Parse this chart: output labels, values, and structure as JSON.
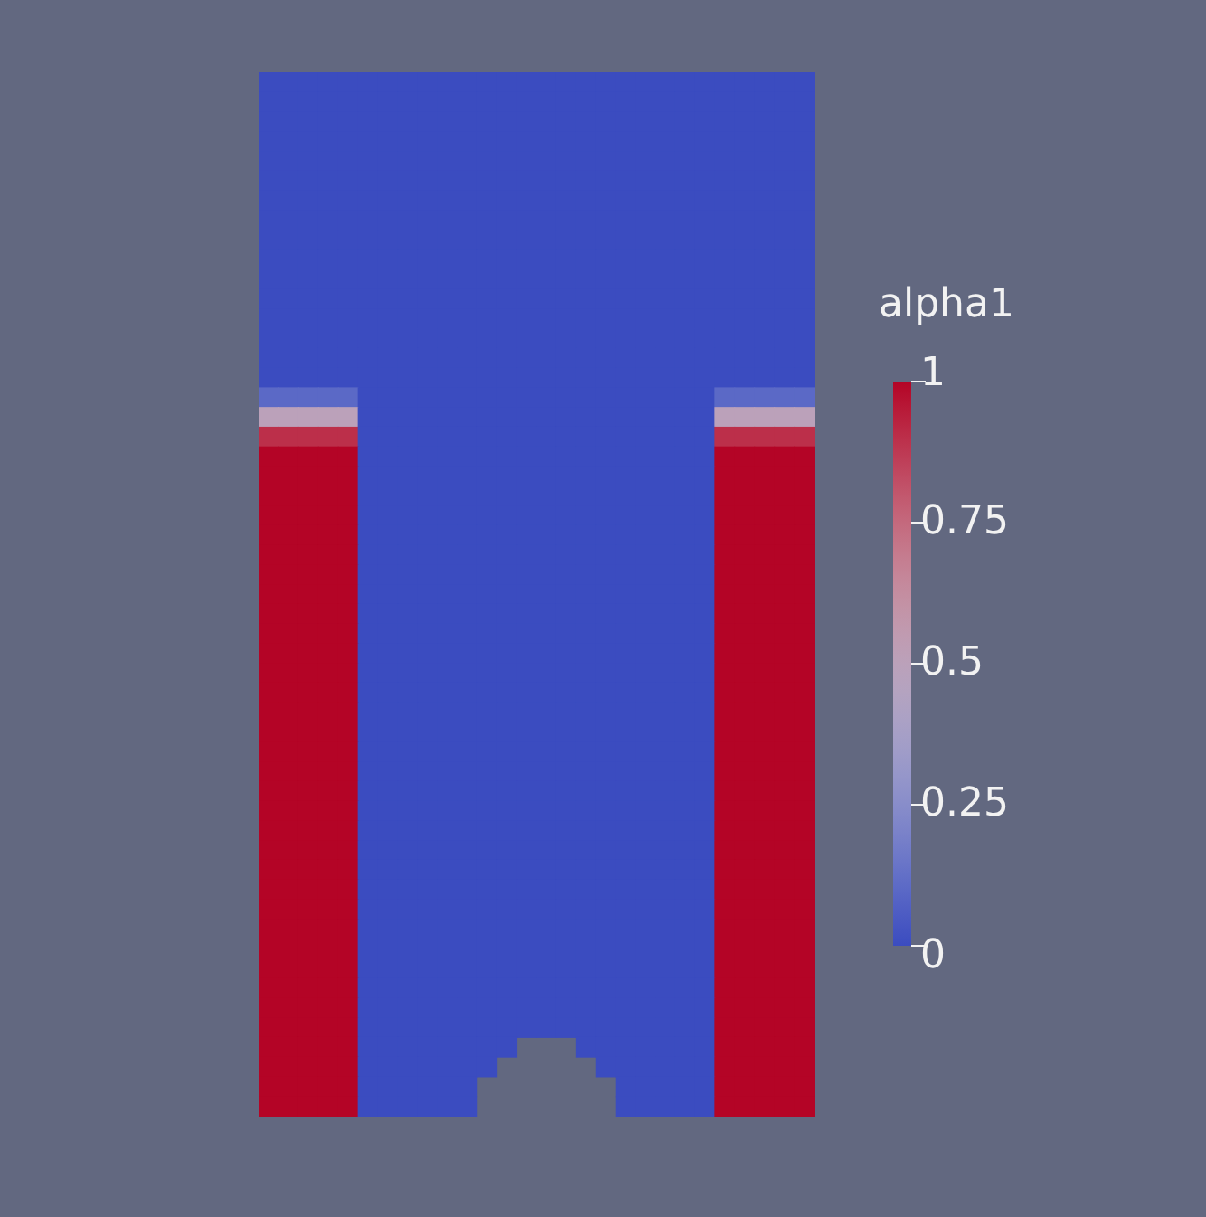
{
  "chart_data": {
    "type": "heatmap",
    "clabel": "alpha1",
    "clim": [
      0,
      1
    ],
    "cticks": [
      0,
      0.25,
      0.5,
      0.75,
      1
    ],
    "categories": [
      null,
      null,
      null,
      null,
      null,
      null,
      null,
      null,
      null,
      null,
      null,
      null,
      null,
      null,
      null,
      null,
      null,
      null,
      null,
      null,
      null,
      null,
      null,
      null,
      null,
      null,
      null,
      null
    ],
    "y_categories": [
      null,
      null,
      null,
      null,
      null,
      null,
      null,
      null,
      null,
      null,
      null,
      null,
      null,
      null,
      null,
      null,
      null,
      null,
      null,
      null,
      null,
      null,
      null,
      null,
      null,
      null,
      null,
      null,
      null,
      null,
      null,
      null,
      null,
      null,
      null,
      null,
      null,
      null,
      null,
      null,
      null,
      null,
      null,
      null,
      null,
      null,
      null,
      null,
      null,
      null,
      null,
      null,
      null
    ],
    "cells": [
      [
        0,
        0,
        0,
        0,
        0,
        0,
        0,
        0,
        0,
        0,
        0,
        0,
        0,
        0,
        0,
        0,
        0,
        0,
        0,
        0,
        0,
        0,
        0,
        0,
        0,
        0,
        0,
        0
      ],
      [
        0,
        0,
        0,
        0,
        0,
        0,
        0,
        0,
        0,
        0,
        0,
        0,
        0,
        0,
        0,
        0,
        0,
        0,
        0,
        0,
        0,
        0,
        0,
        0,
        0,
        0,
        0,
        0
      ],
      [
        0,
        0,
        0,
        0,
        0,
        0,
        0,
        0,
        0,
        0,
        0,
        0,
        0,
        0,
        0,
        0,
        0,
        0,
        0,
        0,
        0,
        0,
        0,
        0,
        0,
        0,
        0,
        0
      ],
      [
        0,
        0,
        0,
        0,
        0,
        0,
        0,
        0,
        0,
        0,
        0,
        0,
        0,
        0,
        0,
        0,
        0,
        0,
        0,
        0,
        0,
        0,
        0,
        0,
        0,
        0,
        0,
        0
      ],
      [
        0,
        0,
        0,
        0,
        0,
        0,
        0,
        0,
        0,
        0,
        0,
        0,
        0,
        0,
        0,
        0,
        0,
        0,
        0,
        0,
        0,
        0,
        0,
        0,
        0,
        0,
        0,
        0
      ],
      [
        0,
        0,
        0,
        0,
        0,
        0,
        0,
        0,
        0,
        0,
        0,
        0,
        0,
        0,
        0,
        0,
        0,
        0,
        0,
        0,
        0,
        0,
        0,
        0,
        0,
        0,
        0,
        0
      ],
      [
        0,
        0,
        0,
        0,
        0,
        0,
        0,
        0,
        0,
        0,
        0,
        0,
        0,
        0,
        0,
        0,
        0,
        0,
        0,
        0,
        0,
        0,
        0,
        0,
        0,
        0,
        0,
        0
      ],
      [
        0,
        0,
        0,
        0,
        0,
        0,
        0,
        0,
        0,
        0,
        0,
        0,
        0,
        0,
        0,
        0,
        0,
        0,
        0,
        0,
        0,
        0,
        0,
        0,
        0,
        0,
        0,
        0
      ],
      [
        0,
        0,
        0,
        0,
        0,
        0,
        0,
        0,
        0,
        0,
        0,
        0,
        0,
        0,
        0,
        0,
        0,
        0,
        0,
        0,
        0,
        0,
        0,
        0,
        0,
        0,
        0,
        0
      ],
      [
        0,
        0,
        0,
        0,
        0,
        0,
        0,
        0,
        0,
        0,
        0,
        0,
        0,
        0,
        0,
        0,
        0,
        0,
        0,
        0,
        0,
        0,
        0,
        0,
        0,
        0,
        0,
        0
      ],
      [
        0,
        0,
        0,
        0,
        0,
        0,
        0,
        0,
        0,
        0,
        0,
        0,
        0,
        0,
        0,
        0,
        0,
        0,
        0,
        0,
        0,
        0,
        0,
        0,
        0,
        0,
        0,
        0
      ],
      [
        0,
        0,
        0,
        0,
        0,
        0,
        0,
        0,
        0,
        0,
        0,
        0,
        0,
        0,
        0,
        0,
        0,
        0,
        0,
        0,
        0,
        0,
        0,
        0,
        0,
        0,
        0,
        0
      ],
      [
        0,
        0,
        0,
        0,
        0,
        0,
        0,
        0,
        0,
        0,
        0,
        0,
        0,
        0,
        0,
        0,
        0,
        0,
        0,
        0,
        0,
        0,
        0,
        0,
        0,
        0,
        0,
        0
      ],
      [
        0,
        0,
        0,
        0,
        0,
        0,
        0,
        0,
        0,
        0,
        0,
        0,
        0,
        0,
        0,
        0,
        0,
        0,
        0,
        0,
        0,
        0,
        0,
        0,
        0,
        0,
        0,
        0
      ],
      [
        0,
        0,
        0,
        0,
        0,
        0,
        0,
        0,
        0,
        0,
        0,
        0,
        0,
        0,
        0,
        0,
        0,
        0,
        0,
        0,
        0,
        0,
        0,
        0,
        0,
        0,
        0,
        0
      ],
      [
        0,
        0,
        0,
        0,
        0,
        0,
        0,
        0,
        0,
        0,
        0,
        0,
        0,
        0,
        0,
        0,
        0,
        0,
        0,
        0,
        0,
        0,
        0,
        0,
        0,
        0,
        0,
        0
      ],
      [
        0.1,
        0.1,
        0.1,
        0.1,
        0.1,
        0,
        0,
        0,
        0,
        0,
        0,
        0,
        0,
        0,
        0,
        0,
        0,
        0,
        0,
        0,
        0,
        0,
        0,
        0.1,
        0.1,
        0.1,
        0.1,
        0.1
      ],
      [
        0.5,
        0.5,
        0.5,
        0.5,
        0.5,
        0,
        0,
        0,
        0,
        0,
        0,
        0,
        0,
        0,
        0,
        0,
        0,
        0,
        0,
        0,
        0,
        0,
        0,
        0.5,
        0.5,
        0.5,
        0.5,
        0.5
      ],
      [
        0.9,
        0.9,
        0.9,
        0.9,
        0.9,
        0,
        0,
        0,
        0,
        0,
        0,
        0,
        0,
        0,
        0,
        0,
        0,
        0,
        0,
        0,
        0,
        0,
        0,
        0.9,
        0.9,
        0.9,
        0.9,
        0.9
      ],
      [
        1,
        1,
        1,
        1,
        1,
        0,
        0,
        0,
        0,
        0,
        0,
        0,
        0,
        0,
        0,
        0,
        0,
        0,
        0,
        0,
        0,
        0,
        0,
        1,
        1,
        1,
        1,
        1
      ],
      [
        1,
        1,
        1,
        1,
        1,
        0,
        0,
        0,
        0,
        0,
        0,
        0,
        0,
        0,
        0,
        0,
        0,
        0,
        0,
        0,
        0,
        0,
        0,
        1,
        1,
        1,
        1,
        1
      ],
      [
        1,
        1,
        1,
        1,
        1,
        0,
        0,
        0,
        0,
        0,
        0,
        0,
        0,
        0,
        0,
        0,
        0,
        0,
        0,
        0,
        0,
        0,
        0,
        1,
        1,
        1,
        1,
        1
      ],
      [
        1,
        1,
        1,
        1,
        1,
        0,
        0,
        0,
        0,
        0,
        0,
        0,
        0,
        0,
        0,
        0,
        0,
        0,
        0,
        0,
        0,
        0,
        0,
        1,
        1,
        1,
        1,
        1
      ],
      [
        1,
        1,
        1,
        1,
        1,
        0,
        0,
        0,
        0,
        0,
        0,
        0,
        0,
        0,
        0,
        0,
        0,
        0,
        0,
        0,
        0,
        0,
        0,
        1,
        1,
        1,
        1,
        1
      ],
      [
        1,
        1,
        1,
        1,
        1,
        0,
        0,
        0,
        0,
        0,
        0,
        0,
        0,
        0,
        0,
        0,
        0,
        0,
        0,
        0,
        0,
        0,
        0,
        1,
        1,
        1,
        1,
        1
      ],
      [
        1,
        1,
        1,
        1,
        1,
        0,
        0,
        0,
        0,
        0,
        0,
        0,
        0,
        0,
        0,
        0,
        0,
        0,
        0,
        0,
        0,
        0,
        0,
        1,
        1,
        1,
        1,
        1
      ],
      [
        1,
        1,
        1,
        1,
        1,
        0,
        0,
        0,
        0,
        0,
        0,
        0,
        0,
        0,
        0,
        0,
        0,
        0,
        0,
        0,
        0,
        0,
        0,
        1,
        1,
        1,
        1,
        1
      ],
      [
        1,
        1,
        1,
        1,
        1,
        0,
        0,
        0,
        0,
        0,
        0,
        0,
        0,
        0,
        0,
        0,
        0,
        0,
        0,
        0,
        0,
        0,
        0,
        1,
        1,
        1,
        1,
        1
      ],
      [
        1,
        1,
        1,
        1,
        1,
        0,
        0,
        0,
        0,
        0,
        0,
        0,
        0,
        0,
        0,
        0,
        0,
        0,
        0,
        0,
        0,
        0,
        0,
        1,
        1,
        1,
        1,
        1
      ],
      [
        1,
        1,
        1,
        1,
        1,
        0,
        0,
        0,
        0,
        0,
        0,
        0,
        0,
        0,
        0,
        0,
        0,
        0,
        0,
        0,
        0,
        0,
        0,
        1,
        1,
        1,
        1,
        1
      ],
      [
        1,
        1,
        1,
        1,
        1,
        0,
        0,
        0,
        0,
        0,
        0,
        0,
        0,
        0,
        0,
        0,
        0,
        0,
        0,
        0,
        0,
        0,
        0,
        1,
        1,
        1,
        1,
        1
      ],
      [
        1,
        1,
        1,
        1,
        1,
        0,
        0,
        0,
        0,
        0,
        0,
        0,
        0,
        0,
        0,
        0,
        0,
        0,
        0,
        0,
        0,
        0,
        0,
        1,
        1,
        1,
        1,
        1
      ],
      [
        1,
        1,
        1,
        1,
        1,
        0,
        0,
        0,
        0,
        0,
        0,
        0,
        0,
        0,
        0,
        0,
        0,
        0,
        0,
        0,
        0,
        0,
        0,
        1,
        1,
        1,
        1,
        1
      ],
      [
        1,
        1,
        1,
        1,
        1,
        0,
        0,
        0,
        0,
        0,
        0,
        0,
        0,
        0,
        0,
        0,
        0,
        0,
        0,
        0,
        0,
        0,
        0,
        1,
        1,
        1,
        1,
        1
      ],
      [
        1,
        1,
        1,
        1,
        1,
        0,
        0,
        0,
        0,
        0,
        0,
        0,
        0,
        0,
        0,
        0,
        0,
        0,
        0,
        0,
        0,
        0,
        0,
        1,
        1,
        1,
        1,
        1
      ],
      [
        1,
        1,
        1,
        1,
        1,
        0,
        0,
        0,
        0,
        0,
        0,
        0,
        0,
        0,
        0,
        0,
        0,
        0,
        0,
        0,
        0,
        0,
        0,
        1,
        1,
        1,
        1,
        1
      ],
      [
        1,
        1,
        1,
        1,
        1,
        0,
        0,
        0,
        0,
        0,
        0,
        0,
        0,
        0,
        0,
        0,
        0,
        0,
        0,
        0,
        0,
        0,
        0,
        1,
        1,
        1,
        1,
        1
      ],
      [
        1,
        1,
        1,
        1,
        1,
        0,
        0,
        0,
        0,
        0,
        0,
        0,
        0,
        0,
        0,
        0,
        0,
        0,
        0,
        0,
        0,
        0,
        0,
        1,
        1,
        1,
        1,
        1
      ],
      [
        1,
        1,
        1,
        1,
        1,
        0,
        0,
        0,
        0,
        0,
        0,
        0,
        0,
        0,
        0,
        0,
        0,
        0,
        0,
        0,
        0,
        0,
        0,
        1,
        1,
        1,
        1,
        1
      ],
      [
        1,
        1,
        1,
        1,
        1,
        0,
        0,
        0,
        0,
        0,
        0,
        0,
        0,
        0,
        0,
        0,
        0,
        0,
        0,
        0,
        0,
        0,
        0,
        1,
        1,
        1,
        1,
        1
      ],
      [
        1,
        1,
        1,
        1,
        1,
        0,
        0,
        0,
        0,
        0,
        0,
        0,
        0,
        0,
        0,
        0,
        0,
        0,
        0,
        0,
        0,
        0,
        0,
        1,
        1,
        1,
        1,
        1
      ],
      [
        1,
        1,
        1,
        1,
        1,
        0,
        0,
        0,
        0,
        0,
        0,
        0,
        0,
        0,
        0,
        0,
        0,
        0,
        0,
        0,
        0,
        0,
        0,
        1,
        1,
        1,
        1,
        1
      ],
      [
        1,
        1,
        1,
        1,
        1,
        0,
        0,
        0,
        0,
        0,
        0,
        0,
        0,
        0,
        0,
        0,
        0,
        0,
        0,
        0,
        0,
        0,
        0,
        1,
        1,
        1,
        1,
        1
      ],
      [
        1,
        1,
        1,
        1,
        1,
        0,
        0,
        0,
        0,
        0,
        0,
        0,
        0,
        0,
        0,
        0,
        0,
        0,
        0,
        0,
        0,
        0,
        0,
        1,
        1,
        1,
        1,
        1
      ],
      [
        1,
        1,
        1,
        1,
        1,
        0,
        0,
        0,
        0,
        0,
        0,
        0,
        0,
        0,
        0,
        0,
        0,
        0,
        0,
        0,
        0,
        0,
        0,
        1,
        1,
        1,
        1,
        1
      ],
      [
        1,
        1,
        1,
        1,
        1,
        0,
        0,
        0,
        0,
        0,
        0,
        0,
        0,
        0,
        0,
        0,
        0,
        0,
        0,
        0,
        0,
        0,
        0,
        1,
        1,
        1,
        1,
        1
      ],
      [
        1,
        1,
        1,
        1,
        1,
        0,
        0,
        0,
        0,
        0,
        0,
        0,
        0,
        0,
        0,
        0,
        0,
        0,
        0,
        0,
        0,
        0,
        0,
        1,
        1,
        1,
        1,
        1
      ],
      [
        1,
        1,
        1,
        1,
        1,
        0,
        0,
        0,
        0,
        0,
        0,
        0,
        0,
        0,
        0,
        0,
        0,
        0,
        0,
        0,
        0,
        0,
        0,
        1,
        1,
        1,
        1,
        1
      ],
      [
        1,
        1,
        1,
        1,
        1,
        0,
        0,
        0,
        0,
        0,
        0,
        0,
        0,
        0,
        0,
        0,
        0,
        0,
        0,
        0,
        0,
        0,
        0,
        1,
        1,
        1,
        1,
        1
      ],
      [
        1,
        1,
        1,
        1,
        1,
        0,
        0,
        0,
        0,
        0,
        0,
        0,
        0,
        null,
        null,
        null,
        0,
        0,
        0,
        0,
        0,
        0,
        0,
        1,
        1,
        1,
        1,
        1
      ],
      [
        1,
        1,
        1,
        1,
        1,
        0,
        0,
        0,
        0,
        0,
        0,
        0,
        null,
        null,
        null,
        null,
        null,
        0,
        0,
        0,
        0,
        0,
        0,
        1,
        1,
        1,
        1,
        1
      ],
      [
        1,
        1,
        1,
        1,
        1,
        0,
        0,
        0,
        0,
        0,
        0,
        null,
        null,
        null,
        null,
        null,
        null,
        null,
        0,
        0,
        0,
        0,
        0,
        1,
        1,
        1,
        1,
        1
      ],
      [
        1,
        1,
        1,
        1,
        1,
        0,
        0,
        0,
        0,
        0,
        0,
        null,
        null,
        null,
        null,
        null,
        null,
        null,
        0,
        0,
        0,
        0,
        0,
        1,
        1,
        1,
        1,
        1
      ]
    ]
  }
}
